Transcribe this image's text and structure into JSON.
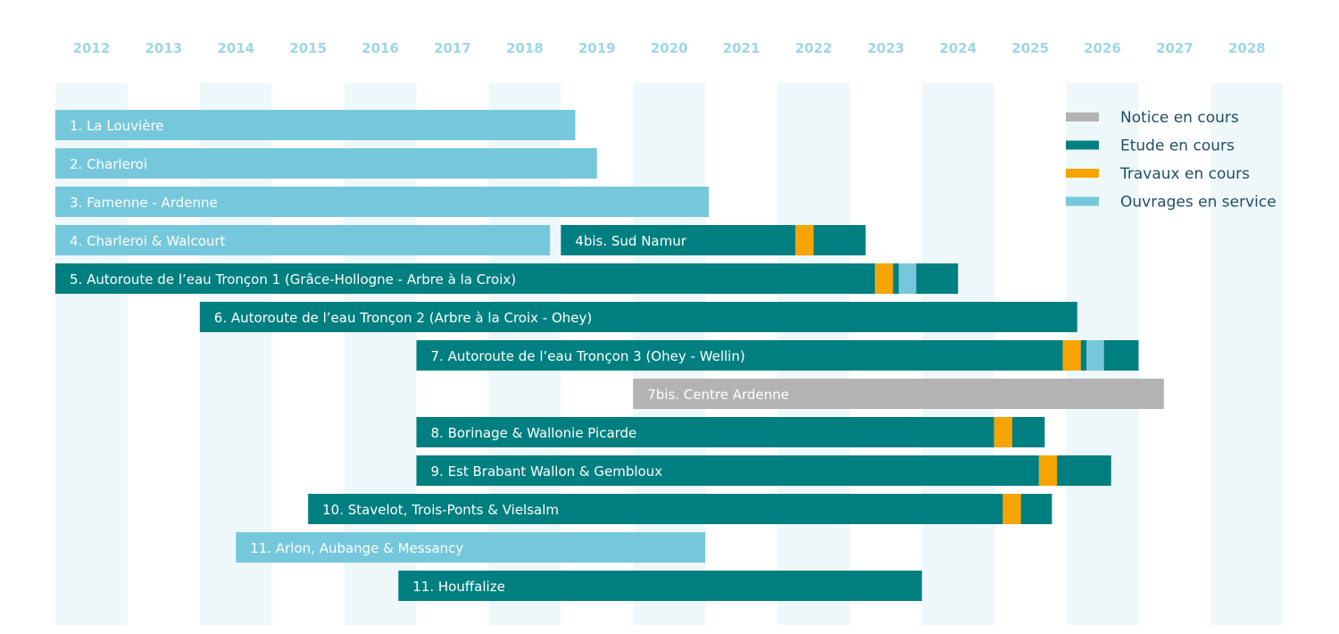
{
  "chart_data": {
    "type": "gantt",
    "x_axis": {
      "years": [
        "2012",
        "2013",
        "2014",
        "2015",
        "2016",
        "2017",
        "2018",
        "2019",
        "2020",
        "2021",
        "2022",
        "2023",
        "2024",
        "2025",
        "2026",
        "2027",
        "2028"
      ],
      "range": [
        2012.0,
        2029.0
      ]
    },
    "legend": {
      "placement": "top-right",
      "entries": [
        {
          "key": "notice",
          "label": "Notice en cours",
          "color": "#b3b3b3"
        },
        {
          "key": "etude",
          "label": "Etude en cours",
          "color": "#007f80"
        },
        {
          "key": "travaux",
          "label": "Travaux en cours",
          "color": "#f6a400"
        },
        {
          "key": "service",
          "label": "Ouvrages en service",
          "color": "#75c8dc"
        }
      ]
    },
    "rows": [
      {
        "label": "1.  La Louvière",
        "segments": [
          {
            "phase": "service",
            "start": 2012.0,
            "end": 2019.2
          }
        ]
      },
      {
        "label": "2.  Charleroi",
        "segments": [
          {
            "phase": "service",
            "start": 2012.0,
            "end": 2019.5
          }
        ]
      },
      {
        "label": "3.  Famenne - Ardenne",
        "segments": [
          {
            "phase": "service",
            "start": 2012.0,
            "end": 2021.05
          }
        ]
      },
      {
        "label": "4.  Charleroi & Walcourt",
        "segments": [
          {
            "phase": "service",
            "start": 2012.0,
            "end": 2018.85
          }
        ]
      },
      {
        "label": "4bis.  Sud Namur",
        "segments": [
          {
            "phase": "etude",
            "start": 2019.0,
            "end": 2022.25
          },
          {
            "phase": "travaux",
            "start": 2022.25,
            "end": 2022.5
          },
          {
            "phase": "etude",
            "start": 2022.5,
            "end": 2023.22
          }
        ]
      },
      {
        "label": "5. Autoroute de l’eau Tronçon 1 (Grâce-Hollogne - Arbre à la Croix)",
        "segments": [
          {
            "phase": "etude",
            "start": 2012.0,
            "end": 2023.35
          },
          {
            "phase": "travaux",
            "start": 2023.35,
            "end": 2023.6
          },
          {
            "phase": "etude",
            "start": 2023.6,
            "end": 2023.68
          },
          {
            "phase": "service",
            "start": 2023.68,
            "end": 2023.92
          },
          {
            "phase": "etude",
            "start": 2023.92,
            "end": 2024.5
          }
        ]
      },
      {
        "label": "6. Autoroute de l’eau Tronçon 2 (Arbre à la Croix - Ohey)",
        "segments": [
          {
            "phase": "etude",
            "start": 2014.0,
            "end": 2026.15
          }
        ]
      },
      {
        "label": "7.  Autoroute de l’eau Tronçon 3 (Ohey - Wellin)",
        "segments": [
          {
            "phase": "etude",
            "start": 2017.0,
            "end": 2025.95
          },
          {
            "phase": "travaux",
            "start": 2025.95,
            "end": 2026.2
          },
          {
            "phase": "etude",
            "start": 2026.2,
            "end": 2026.28
          },
          {
            "phase": "service",
            "start": 2026.28,
            "end": 2026.52
          },
          {
            "phase": "etude",
            "start": 2026.52,
            "end": 2027.0
          }
        ]
      },
      {
        "label": "7bis.  Centre Ardenne",
        "segments": [
          {
            "phase": "notice",
            "start": 2020.0,
            "end": 2027.35
          }
        ]
      },
      {
        "label": "8. Borinage & Wallonie Picarde",
        "segments": [
          {
            "phase": "etude",
            "start": 2017.0,
            "end": 2025.0
          },
          {
            "phase": "travaux",
            "start": 2025.0,
            "end": 2025.25
          },
          {
            "phase": "etude",
            "start": 2025.25,
            "end": 2025.7
          }
        ]
      },
      {
        "label": "9. Est Brabant Wallon & Gembloux",
        "segments": [
          {
            "phase": "etude",
            "start": 2017.0,
            "end": 2025.62
          },
          {
            "phase": "travaux",
            "start": 2025.62,
            "end": 2025.87
          },
          {
            "phase": "etude",
            "start": 2025.87,
            "end": 2026.62
          }
        ]
      },
      {
        "label": "10.  Stavelot, Trois-Ponts & Vielsalm",
        "segments": [
          {
            "phase": "etude",
            "start": 2015.5,
            "end": 2025.12
          },
          {
            "phase": "travaux",
            "start": 2025.12,
            "end": 2025.37
          },
          {
            "phase": "etude",
            "start": 2025.37,
            "end": 2025.8
          }
        ]
      },
      {
        "label": "11.  Arlon, Aubange & Messancy",
        "segments": [
          {
            "phase": "service",
            "start": 2014.5,
            "end": 2021.0
          }
        ]
      },
      {
        "label": "11.  Houffalize",
        "segments": [
          {
            "phase": "etude",
            "start": 2016.75,
            "end": 2024.0
          }
        ]
      }
    ]
  }
}
